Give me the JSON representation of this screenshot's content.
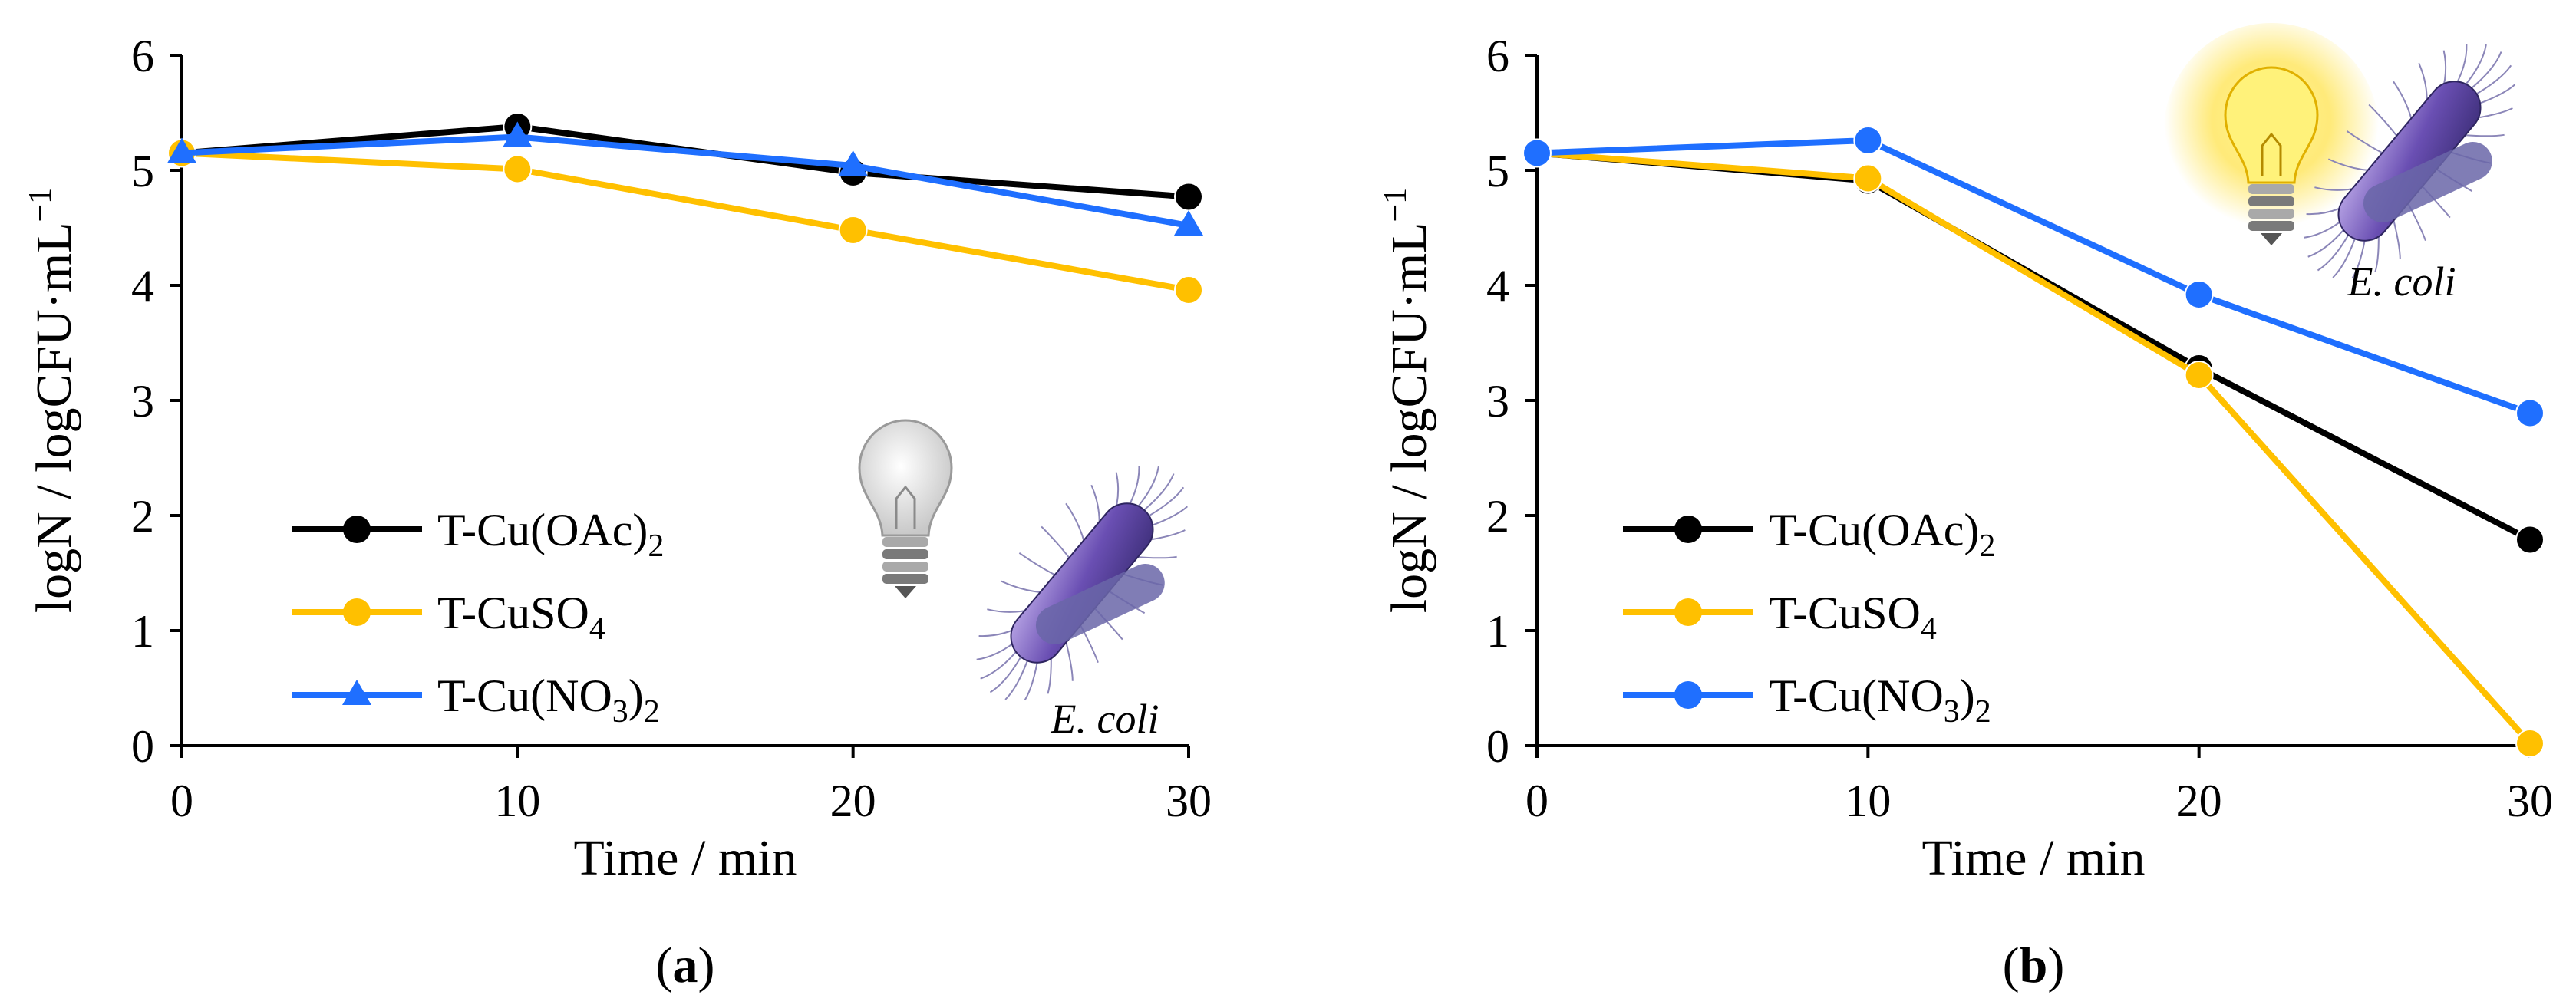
{
  "figure": {
    "panel_labels": [
      "a",
      "b"
    ]
  },
  "chart_data": [
    {
      "type": "line",
      "panel": "a",
      "xlabel": "Time / min",
      "ylabel": "logN / logCFU·mL",
      "ylabel_sup": "−1",
      "xlim": [
        0,
        30
      ],
      "ylim": [
        0,
        6
      ],
      "x_ticks": [
        "0",
        "10",
        "20",
        "30"
      ],
      "y_ticks": [
        "0",
        "1",
        "2",
        "3",
        "4",
        "5",
        "6"
      ],
      "x": [
        0,
        10,
        20,
        30
      ],
      "legend_position": "lower-left",
      "annotation": "E. coli",
      "light": "off",
      "series": [
        {
          "name": "T-Cu(OAc)",
          "name_sub": "2",
          "name_tail": "",
          "color": "#000000",
          "marker": "circle",
          "values": [
            5.15,
            5.38,
            4.98,
            4.77
          ]
        },
        {
          "name": "T-CuSO",
          "name_sub": "4",
          "name_tail": "",
          "color": "#FFC000",
          "marker": "circle",
          "values": [
            5.15,
            5.01,
            4.48,
            3.96
          ]
        },
        {
          "name": "T-Cu(NO",
          "name_sub": "3",
          "name_tail": ")2",
          "color": "#1F6FFF",
          "marker": "triangle",
          "values": [
            5.15,
            5.29,
            5.04,
            4.52
          ]
        }
      ]
    },
    {
      "type": "line",
      "panel": "b",
      "xlabel": "Time / min",
      "ylabel": "logN / logCFU·mL",
      "ylabel_sup": "−1",
      "xlim": [
        0,
        30
      ],
      "ylim": [
        0,
        6
      ],
      "x_ticks": [
        "0",
        "10",
        "20",
        "30"
      ],
      "y_ticks": [
        "0",
        "1",
        "2",
        "3",
        "4",
        "5",
        "6"
      ],
      "x": [
        0,
        10,
        20,
        30
      ],
      "legend_position": "lower-left",
      "annotation": "E. coli",
      "light": "on",
      "series": [
        {
          "name": "T-Cu(OAc)",
          "name_sub": "2",
          "name_tail": "",
          "color": "#000000",
          "marker": "circle",
          "values": [
            5.15,
            4.91,
            3.28,
            1.79
          ]
        },
        {
          "name": "T-CuSO",
          "name_sub": "4",
          "name_tail": "",
          "color": "#FFC000",
          "marker": "circle",
          "values": [
            5.15,
            4.93,
            3.22,
            0.02
          ]
        },
        {
          "name": "T-Cu(NO",
          "name_sub": "3",
          "name_tail": ")2",
          "color": "#1F6FFF",
          "marker": "circle",
          "values": [
            5.15,
            5.26,
            3.92,
            2.89
          ]
        }
      ]
    }
  ]
}
